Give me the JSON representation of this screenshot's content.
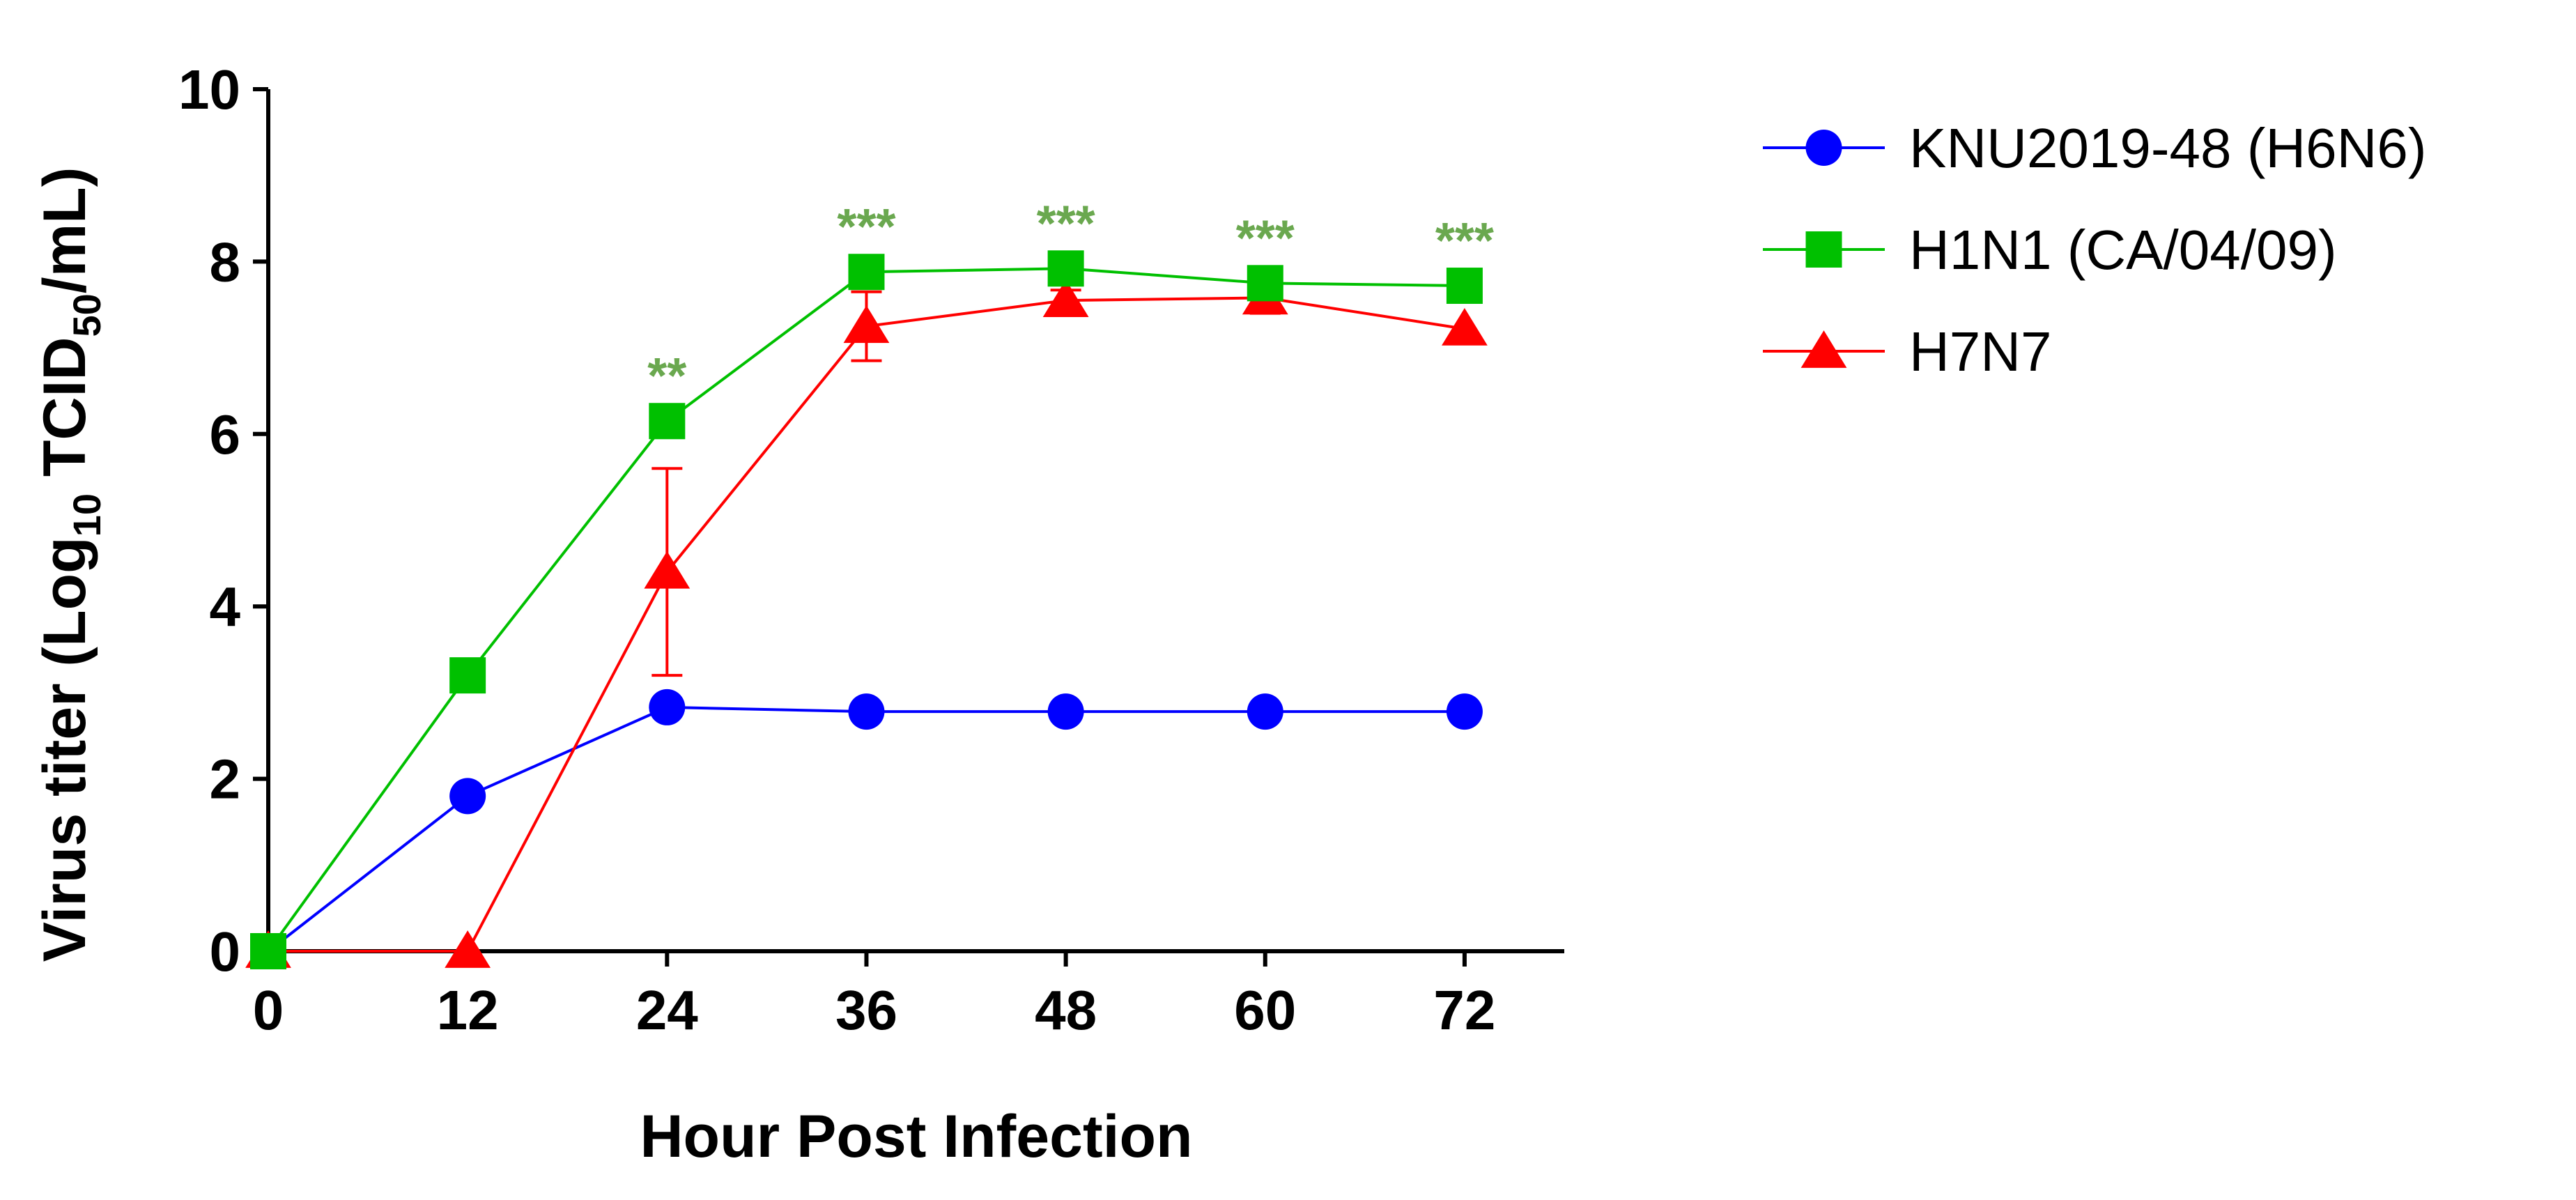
{
  "chart_data": {
    "type": "line",
    "title": "",
    "xlabel": "Hour Post Infection",
    "ylabel_main": "Virus titer (Log",
    "ylabel_sub1": "10",
    "ylabel_mid": " TCID",
    "ylabel_sub2": "50",
    "ylabel_end": "/mL)",
    "xlim": [
      0,
      78
    ],
    "ylim": [
      0,
      10
    ],
    "x": [
      0,
      12,
      24,
      36,
      48,
      60,
      72
    ],
    "xticks": [
      "0",
      "12",
      "24",
      "36",
      "48",
      "60",
      "72"
    ],
    "yticks": [
      "0",
      "2",
      "4",
      "6",
      "8",
      "10"
    ],
    "legend_position": "right",
    "series": [
      {
        "name": "KNU2019-48 (H6N6)",
        "color": "#0000ff",
        "marker": "circle",
        "values": [
          0,
          1.8,
          2.83,
          2.78,
          2.78,
          2.78,
          2.78
        ],
        "errors": [
          0,
          0,
          0,
          0,
          0,
          0,
          0
        ]
      },
      {
        "name": "H1N1 (CA/04/09)",
        "color": "#00c000",
        "marker": "square",
        "values": [
          0,
          3.2,
          6.15,
          7.88,
          7.92,
          7.75,
          7.72
        ],
        "errors": [
          0,
          0,
          0,
          0,
          0,
          0,
          0
        ]
      },
      {
        "name": "H7N7",
        "color": "#ff0000",
        "marker": "triangle",
        "values": [
          0,
          0,
          4.4,
          7.25,
          7.55,
          7.58,
          7.22
        ],
        "errors": [
          0,
          0,
          1.2,
          0.4,
          0.12,
          0.18,
          0
        ]
      }
    ],
    "annotations": [
      {
        "x": 24,
        "text": "**"
      },
      {
        "x": 36,
        "text": "***"
      },
      {
        "x": 48,
        "text": "***"
      },
      {
        "x": 60,
        "text": "***"
      },
      {
        "x": 72,
        "text": "***"
      }
    ],
    "annotation_color": "#6aa84f"
  }
}
